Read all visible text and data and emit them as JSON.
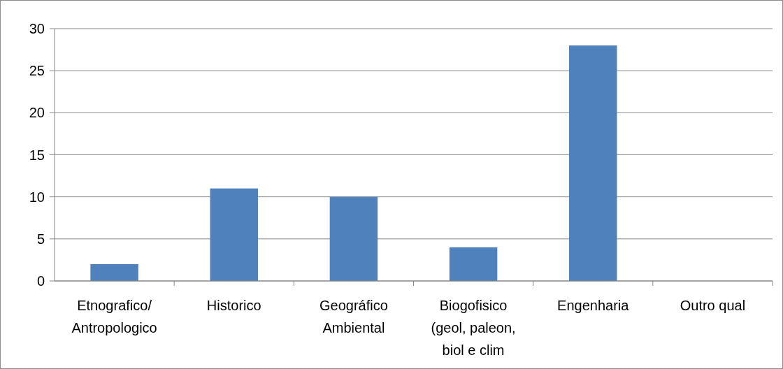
{
  "chart_data": {
    "type": "bar",
    "categories": [
      "Etnografico/Antropologico",
      "Historico",
      "Geográfico Ambiental",
      "Biogofisico (geol, paleon, biol e clim",
      "Engenharia",
      "Outro qual"
    ],
    "values": [
      2,
      11,
      10,
      4,
      28,
      0
    ],
    "color": "#4f81bd",
    "ylim": [
      0,
      30
    ],
    "yticks": [
      0,
      5,
      10,
      15,
      20,
      25,
      30
    ],
    "grid": "y"
  }
}
